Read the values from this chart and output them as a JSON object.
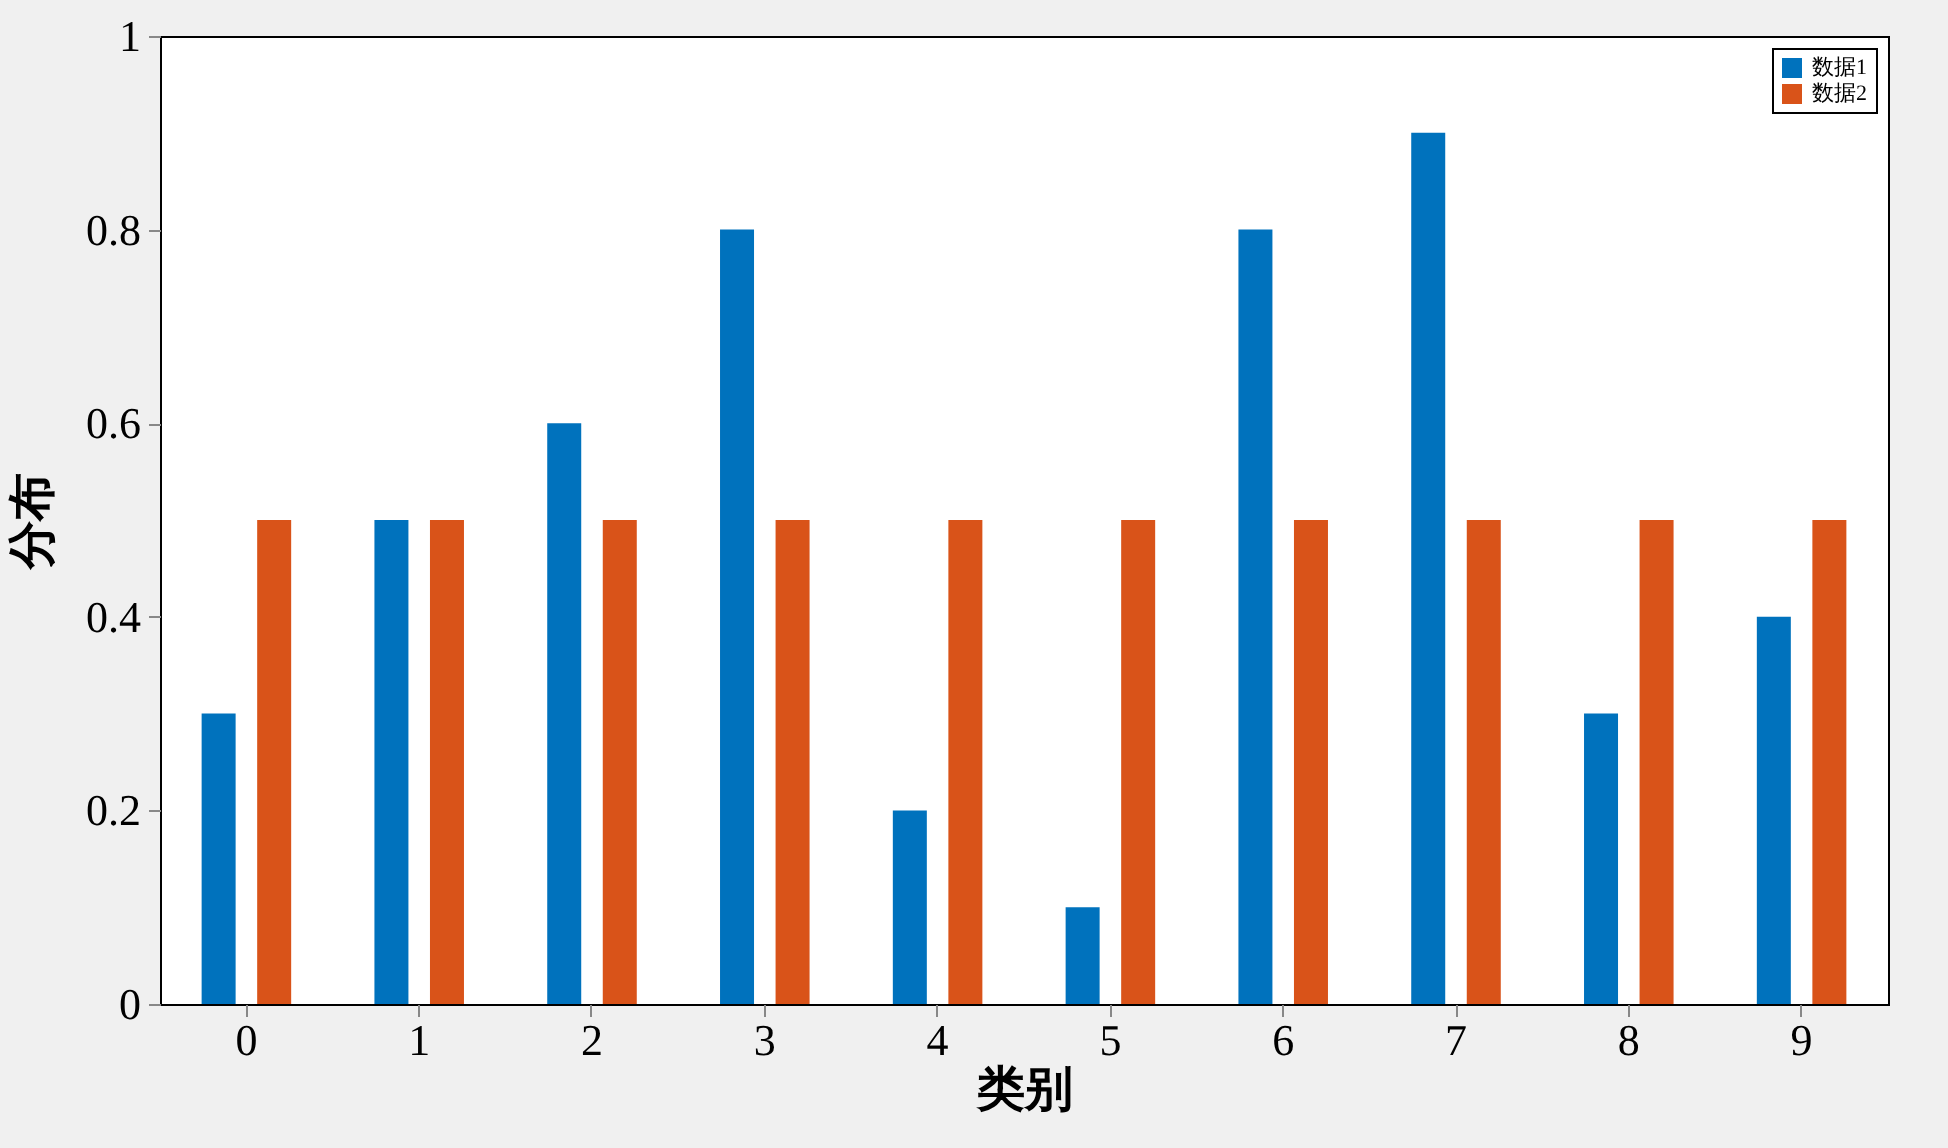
{
  "chart_data": {
    "type": "bar",
    "xlabel": "类别",
    "ylabel": "分布",
    "categories": [
      "0",
      "1",
      "2",
      "3",
      "4",
      "5",
      "6",
      "7",
      "8",
      "9"
    ],
    "series": [
      {
        "name": "数据1",
        "color": "#0072bd",
        "values": [
          0.3,
          0.5,
          0.6,
          0.8,
          0.2,
          0.1,
          0.8,
          0.9,
          0.3,
          0.4
        ]
      },
      {
        "name": "数据2",
        "color": "#d95319",
        "values": [
          0.5,
          0.5,
          0.5,
          0.5,
          0.5,
          0.5,
          0.5,
          0.5,
          0.5,
          0.5
        ]
      }
    ],
    "ylim": [
      0,
      1
    ],
    "yticks": [
      0,
      0.2,
      0.4,
      0.6,
      0.8,
      1
    ],
    "grid": false,
    "legend": "top right"
  }
}
